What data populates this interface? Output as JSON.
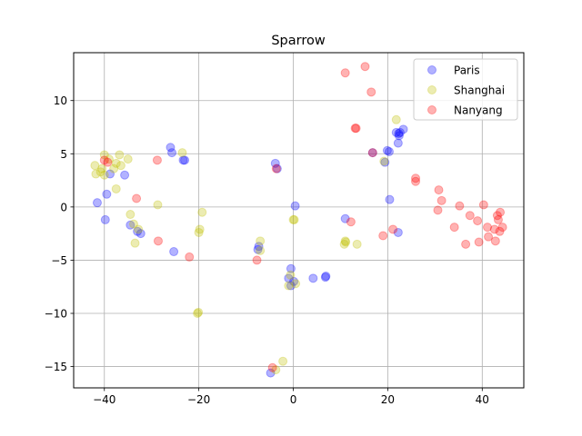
{
  "chart_data": {
    "type": "scatter",
    "title": "Sparrow",
    "xlabel": "",
    "ylabel": "",
    "xlim": [
      -46.5,
      48.8
    ],
    "ylim": [
      -17.0,
      14.5
    ],
    "xticks": [
      -40,
      -20,
      0,
      20,
      40
    ],
    "yticks": [
      -15,
      -10,
      -5,
      0,
      5,
      10
    ],
    "grid": true,
    "legend": "top-right",
    "series": [
      {
        "name": "Paris",
        "color": "#0000ff",
        "points": [
          [
            -41.5,
            0.4
          ],
          [
            -39.8,
            -1.2
          ],
          [
            -39.5,
            1.2
          ],
          [
            -38.8,
            3.1
          ],
          [
            -35.7,
            3.0
          ],
          [
            -34.5,
            -1.7
          ],
          [
            -33.0,
            -2.3
          ],
          [
            -32.3,
            -2.5
          ],
          [
            -26.0,
            5.6
          ],
          [
            -25.7,
            5.1
          ],
          [
            -25.3,
            -4.2
          ],
          [
            -23.3,
            4.4
          ],
          [
            -23.0,
            4.4
          ],
          [
            -7.5,
            -4.0
          ],
          [
            -7.3,
            -3.7
          ],
          [
            -3.8,
            4.1
          ],
          [
            -3.4,
            3.6
          ],
          [
            -1.0,
            -6.7
          ],
          [
            -0.5,
            -7.4
          ],
          [
            -0.5,
            -5.8
          ],
          [
            0.1,
            -7.0
          ],
          [
            0.4,
            0.1
          ],
          [
            4.2,
            -6.7
          ],
          [
            6.8,
            -6.6
          ],
          [
            6.9,
            -6.5
          ],
          [
            11.0,
            -1.1
          ],
          [
            16.8,
            5.1
          ],
          [
            19.4,
            4.2
          ],
          [
            19.9,
            5.3
          ],
          [
            20.3,
            5.2
          ],
          [
            20.4,
            0.7
          ],
          [
            21.8,
            7.0
          ],
          [
            22.2,
            6.0
          ],
          [
            22.3,
            6.9
          ],
          [
            22.4,
            6.7
          ],
          [
            22.6,
            7.0
          ],
          [
            23.3,
            7.3
          ],
          [
            22.2,
            -2.4
          ],
          [
            -4.8,
            -15.6
          ]
        ]
      },
      {
        "name": "Shanghai",
        "color": "#bfbf00",
        "points": [
          [
            -42.0,
            3.9
          ],
          [
            -41.8,
            3.1
          ],
          [
            -40.8,
            3.3
          ],
          [
            -40.5,
            3.6
          ],
          [
            -40.0,
            3.0
          ],
          [
            -40.0,
            4.9
          ],
          [
            -39.0,
            4.5
          ],
          [
            -38.0,
            3.6
          ],
          [
            -37.5,
            4.1
          ],
          [
            -37.5,
            1.7
          ],
          [
            -36.8,
            4.9
          ],
          [
            -36.5,
            3.9
          ],
          [
            -35.0,
            4.5
          ],
          [
            -34.5,
            -0.7
          ],
          [
            -33.8,
            -1.6
          ],
          [
            -33.5,
            -3.4
          ],
          [
            -32.8,
            -2.1
          ],
          [
            -28.7,
            0.2
          ],
          [
            -23.5,
            5.1
          ],
          [
            -20.3,
            -10.0
          ],
          [
            -20.1,
            -9.9
          ],
          [
            -20.0,
            -2.4
          ],
          [
            -19.8,
            -2.1
          ],
          [
            -19.3,
            -0.5
          ],
          [
            -7.0,
            -3.2
          ],
          [
            -7.0,
            -4.1
          ],
          [
            -2.2,
            -14.5
          ],
          [
            -3.7,
            -15.3
          ],
          [
            -0.6,
            -6.4
          ],
          [
            0.0,
            -1.2
          ],
          [
            0.2,
            -1.2
          ],
          [
            0.5,
            -7.2
          ],
          [
            10.8,
            -3.5
          ],
          [
            11.0,
            -3.2
          ],
          [
            11.1,
            -3.3
          ],
          [
            13.5,
            -3.5
          ],
          [
            21.8,
            8.2
          ],
          [
            19.2,
            4.3
          ],
          [
            -1.0,
            -7.4
          ]
        ]
      },
      {
        "name": "Nanyang",
        "color": "#ff0000",
        "points": [
          [
            -40.0,
            4.4
          ],
          [
            -39.3,
            4.2
          ],
          [
            -33.2,
            0.8
          ],
          [
            -28.8,
            4.4
          ],
          [
            -28.6,
            -3.2
          ],
          [
            -22.0,
            -4.7
          ],
          [
            -7.7,
            -5.0
          ],
          [
            -4.4,
            -15.1
          ],
          [
            -3.6,
            3.6
          ],
          [
            11.0,
            12.6
          ],
          [
            12.2,
            -1.4
          ],
          [
            13.1,
            7.4
          ],
          [
            13.3,
            7.4
          ],
          [
            15.2,
            13.2
          ],
          [
            16.5,
            10.8
          ],
          [
            16.8,
            5.1
          ],
          [
            19.0,
            -2.7
          ],
          [
            21.1,
            -2.1
          ],
          [
            25.9,
            2.7
          ],
          [
            25.9,
            2.4
          ],
          [
            30.8,
            1.6
          ],
          [
            30.6,
            -0.3
          ],
          [
            31.4,
            0.6
          ],
          [
            34.1,
            -1.9
          ],
          [
            35.2,
            0.1
          ],
          [
            36.5,
            -3.5
          ],
          [
            37.4,
            -0.8
          ],
          [
            39.0,
            -1.3
          ],
          [
            39.3,
            -3.3
          ],
          [
            40.3,
            0.2
          ],
          [
            41.1,
            -1.9
          ],
          [
            41.3,
            -2.8
          ],
          [
            42.6,
            -2.1
          ],
          [
            42.8,
            -3.2
          ],
          [
            43.2,
            -0.8
          ],
          [
            43.4,
            -1.2
          ],
          [
            43.8,
            -0.5
          ],
          [
            44.3,
            -1.9
          ],
          [
            43.7,
            -2.3
          ]
        ]
      }
    ]
  }
}
